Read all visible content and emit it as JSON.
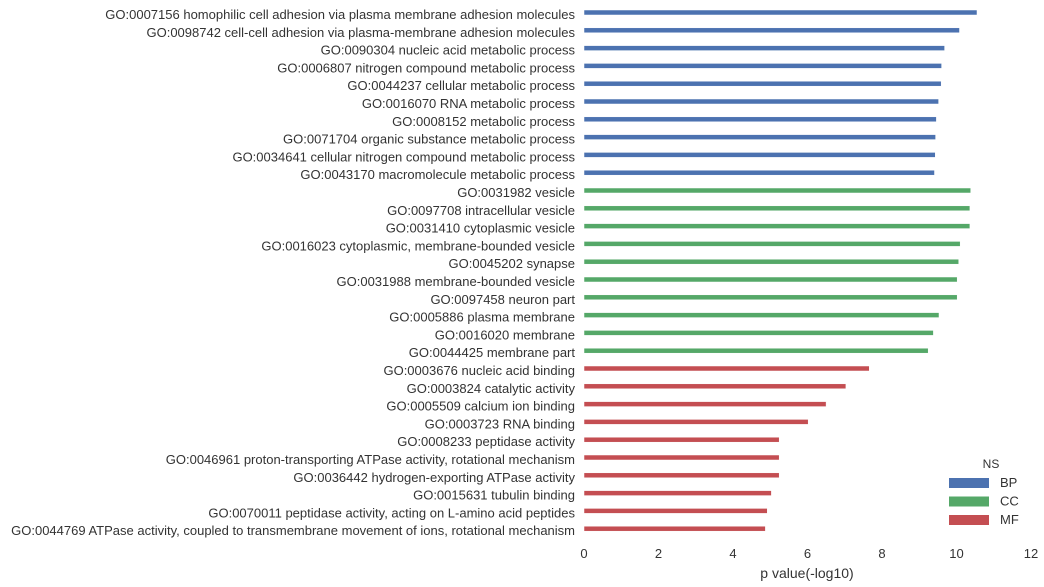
{
  "chart_data": {
    "type": "bar",
    "orientation": "horizontal",
    "xlabel": "p value(-log10)",
    "xlim": [
      0,
      12
    ],
    "xticks": [
      0,
      2,
      4,
      6,
      8,
      10,
      12
    ],
    "grid": false,
    "legend": {
      "title": "NS",
      "placement": "bottom-right",
      "entries": [
        {
          "name": "BP",
          "color": "#4c72b0"
        },
        {
          "name": "CC",
          "color": "#55a868"
        },
        {
          "name": "MF",
          "color": "#c44e52"
        }
      ]
    },
    "bars": [
      {
        "label": "GO:0007156 homophilic cell adhesion via plasma membrane adhesion molecules",
        "value": 10.55,
        "ns": "BP"
      },
      {
        "label": "GO:0098742 cell-cell adhesion via plasma-membrane adhesion molecules",
        "value": 10.08,
        "ns": "BP"
      },
      {
        "label": "GO:0090304 nucleic acid metabolic process",
        "value": 9.68,
        "ns": "BP"
      },
      {
        "label": "GO:0006807 nitrogen compound metabolic process",
        "value": 9.6,
        "ns": "BP"
      },
      {
        "label": "GO:0044237 cellular metabolic process",
        "value": 9.59,
        "ns": "BP"
      },
      {
        "label": "GO:0016070 RNA metabolic process",
        "value": 9.52,
        "ns": "BP"
      },
      {
        "label": "GO:0008152 metabolic process",
        "value": 9.46,
        "ns": "BP"
      },
      {
        "label": "GO:0071704 organic substance metabolic process",
        "value": 9.44,
        "ns": "BP"
      },
      {
        "label": "GO:0034641 cellular nitrogen compound metabolic process",
        "value": 9.43,
        "ns": "BP"
      },
      {
        "label": "GO:0043170 macromolecule metabolic process",
        "value": 9.41,
        "ns": "BP"
      },
      {
        "label": "GO:0031982 vesicle",
        "value": 10.38,
        "ns": "CC"
      },
      {
        "label": "GO:0097708 intracellular vesicle",
        "value": 10.36,
        "ns": "CC"
      },
      {
        "label": "GO:0031410 cytoplasmic vesicle",
        "value": 10.36,
        "ns": "CC"
      },
      {
        "label": "GO:0016023 cytoplasmic, membrane-bounded vesicle",
        "value": 10.1,
        "ns": "CC"
      },
      {
        "label": "GO:0045202 synapse",
        "value": 10.06,
        "ns": "CC"
      },
      {
        "label": "GO:0031988 membrane-bounded vesicle",
        "value": 10.02,
        "ns": "CC"
      },
      {
        "label": "GO:0097458 neuron part",
        "value": 10.02,
        "ns": "CC"
      },
      {
        "label": "GO:0005886 plasma membrane",
        "value": 9.53,
        "ns": "CC"
      },
      {
        "label": "GO:0016020 membrane",
        "value": 9.38,
        "ns": "CC"
      },
      {
        "label": "GO:0044425 membrane part",
        "value": 9.24,
        "ns": "CC"
      },
      {
        "label": "GO:0003676 nucleic acid binding",
        "value": 7.66,
        "ns": "MF"
      },
      {
        "label": "GO:0003824 catalytic activity",
        "value": 7.03,
        "ns": "MF"
      },
      {
        "label": "GO:0005509 calcium ion binding",
        "value": 6.5,
        "ns": "MF"
      },
      {
        "label": "GO:0003723 RNA binding",
        "value": 6.02,
        "ns": "MF"
      },
      {
        "label": "GO:0008233 peptidase activity",
        "value": 5.24,
        "ns": "MF"
      },
      {
        "label": "GO:0046961 proton-transporting ATPase activity, rotational mechanism",
        "value": 5.24,
        "ns": "MF"
      },
      {
        "label": "GO:0036442 hydrogen-exporting ATPase activity",
        "value": 5.24,
        "ns": "MF"
      },
      {
        "label": "GO:0015631 tubulin binding",
        "value": 5.03,
        "ns": "MF"
      },
      {
        "label": "GO:0070011 peptidase activity, acting on L-amino acid peptides",
        "value": 4.92,
        "ns": "MF"
      },
      {
        "label": "GO:0044769 ATPase activity, coupled to transmembrane movement of ions, rotational mechanism",
        "value": 4.87,
        "ns": "MF"
      }
    ]
  }
}
